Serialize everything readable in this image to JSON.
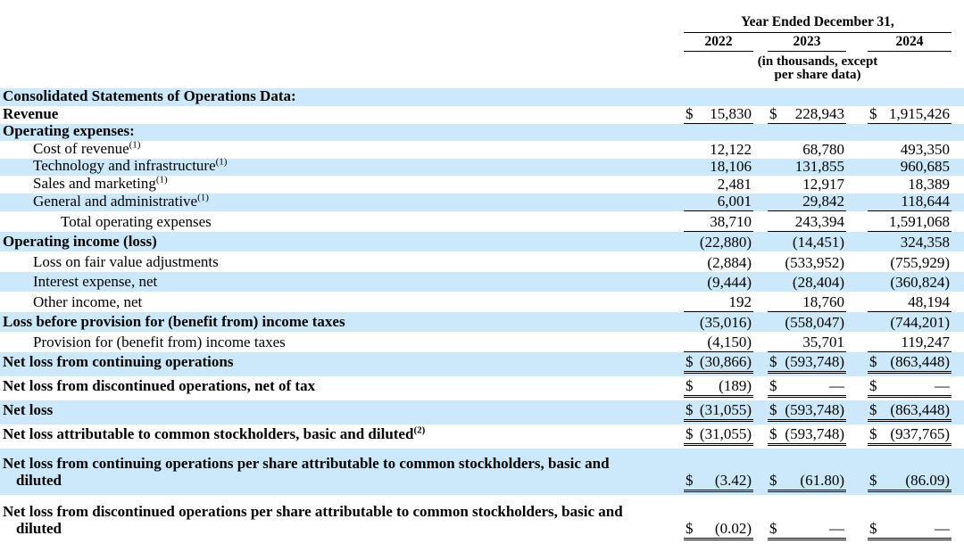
{
  "colors": {
    "row_shade": "#cbe9fb",
    "rule": "#000000",
    "text": "#000000"
  },
  "table": {
    "header": {
      "period_title": "Year Ended December 31,",
      "columns": [
        "2022",
        "2023",
        "2024"
      ],
      "units_note_line1": "(in thousands, except",
      "units_note_line2": "per share data)"
    },
    "rows": [
      {
        "label": "Consolidated Statements of Operations Data:",
        "sup": "",
        "bold": true,
        "shaded": true,
        "indent": 0,
        "twoline": false,
        "label2": "",
        "rule": "none",
        "cells": [
          {
            "d": "",
            "v": ""
          },
          {
            "d": "",
            "v": ""
          },
          {
            "d": "",
            "v": ""
          }
        ]
      },
      {
        "label": "Revenue",
        "sup": "",
        "bold": true,
        "shaded": false,
        "indent": 0,
        "twoline": false,
        "label2": "",
        "rule": "single",
        "cells": [
          {
            "d": "$",
            "v": "15,830"
          },
          {
            "d": "$",
            "v": "228,943"
          },
          {
            "d": "$",
            "v": "1,915,426"
          }
        ]
      },
      {
        "label": "Operating expenses:",
        "sup": "",
        "bold": true,
        "shaded": true,
        "indent": 0,
        "twoline": false,
        "label2": "",
        "rule": "none",
        "cells": [
          {
            "d": "",
            "v": ""
          },
          {
            "d": "",
            "v": ""
          },
          {
            "d": "",
            "v": ""
          }
        ]
      },
      {
        "label": "Cost of revenue",
        "sup": "(1)",
        "bold": false,
        "shaded": false,
        "indent": 1,
        "twoline": false,
        "label2": "",
        "rule": "none",
        "cells": [
          {
            "d": "",
            "v": "12,122"
          },
          {
            "d": "",
            "v": "68,780"
          },
          {
            "d": "",
            "v": "493,350"
          }
        ]
      },
      {
        "label": "Technology and infrastructure",
        "sup": "(1)",
        "bold": false,
        "shaded": true,
        "indent": 1,
        "twoline": false,
        "label2": "",
        "rule": "none",
        "cells": [
          {
            "d": "",
            "v": "18,106"
          },
          {
            "d": "",
            "v": "131,855"
          },
          {
            "d": "",
            "v": "960,685"
          }
        ]
      },
      {
        "label": "Sales and marketing",
        "sup": "(1)",
        "bold": false,
        "shaded": false,
        "indent": 1,
        "twoline": false,
        "label2": "",
        "rule": "none",
        "cells": [
          {
            "d": "",
            "v": "2,481"
          },
          {
            "d": "",
            "v": "12,917"
          },
          {
            "d": "",
            "v": "18,389"
          }
        ]
      },
      {
        "label": "General and administrative",
        "sup": "(1)",
        "bold": false,
        "shaded": true,
        "indent": 1,
        "twoline": false,
        "label2": "",
        "rule": "single",
        "cells": [
          {
            "d": "",
            "v": "6,001"
          },
          {
            "d": "",
            "v": "29,842"
          },
          {
            "d": "",
            "v": "118,644"
          }
        ]
      },
      {
        "label": "Total operating expenses",
        "sup": "",
        "bold": false,
        "shaded": false,
        "indent": 2,
        "twoline": false,
        "label2": "",
        "rule": "single",
        "cells": [
          {
            "d": "",
            "v": "38,710"
          },
          {
            "d": "",
            "v": "243,394"
          },
          {
            "d": "",
            "v": "1,591,068"
          }
        ]
      },
      {
        "label": "Operating income (loss)",
        "sup": "",
        "bold": true,
        "shaded": true,
        "indent": 0,
        "twoline": false,
        "label2": "",
        "rule": "none",
        "cells": [
          {
            "d": "",
            "v": "(22,880)"
          },
          {
            "d": "",
            "v": "(14,451)"
          },
          {
            "d": "",
            "v": "324,358"
          }
        ]
      },
      {
        "label": "Loss on fair value adjustments",
        "sup": "",
        "bold": false,
        "shaded": false,
        "indent": 1,
        "twoline": false,
        "label2": "",
        "rule": "none",
        "cells": [
          {
            "d": "",
            "v": "(2,884)"
          },
          {
            "d": "",
            "v": "(533,952)"
          },
          {
            "d": "",
            "v": "(755,929)"
          }
        ]
      },
      {
        "label": "Interest expense, net",
        "sup": "",
        "bold": false,
        "shaded": true,
        "indent": 1,
        "twoline": false,
        "label2": "",
        "rule": "none",
        "cells": [
          {
            "d": "",
            "v": "(9,444)"
          },
          {
            "d": "",
            "v": "(28,404)"
          },
          {
            "d": "",
            "v": "(360,824)"
          }
        ]
      },
      {
        "label": "Other income, net",
        "sup": "",
        "bold": false,
        "shaded": false,
        "indent": 1,
        "twoline": false,
        "label2": "",
        "rule": "single",
        "cells": [
          {
            "d": "",
            "v": "192"
          },
          {
            "d": "",
            "v": "18,760"
          },
          {
            "d": "",
            "v": "48,194"
          }
        ]
      },
      {
        "label": "Loss before provision for (benefit from) income taxes",
        "sup": "",
        "bold": true,
        "shaded": true,
        "indent": 0,
        "twoline": false,
        "label2": "",
        "rule": "none",
        "cells": [
          {
            "d": "",
            "v": "(35,016)"
          },
          {
            "d": "",
            "v": "(558,047)"
          },
          {
            "d": "",
            "v": "(744,201)"
          }
        ]
      },
      {
        "label": "Provision for (benefit from) income taxes",
        "sup": "",
        "bold": false,
        "shaded": false,
        "indent": 1,
        "twoline": false,
        "label2": "",
        "rule": "single",
        "cells": [
          {
            "d": "",
            "v": "(4,150)"
          },
          {
            "d": "",
            "v": "35,701"
          },
          {
            "d": "",
            "v": "119,247"
          }
        ]
      },
      {
        "label": "Net loss from continuing operations",
        "sup": "",
        "bold": true,
        "shaded": true,
        "indent": 0,
        "twoline": false,
        "label2": "",
        "rule": "double",
        "cells": [
          {
            "d": "$",
            "v": "(30,866)"
          },
          {
            "d": "$",
            "v": "(593,748)"
          },
          {
            "d": "$",
            "v": "(863,448)"
          }
        ]
      },
      {
        "label": "Net loss from discontinued operations, net of tax",
        "sup": "",
        "bold": true,
        "shaded": false,
        "indent": 0,
        "twoline": false,
        "label2": "",
        "rule": "double",
        "cells": [
          {
            "d": "$",
            "v": "(189)"
          },
          {
            "d": "$",
            "v": "—"
          },
          {
            "d": "$",
            "v": "—"
          }
        ]
      },
      {
        "label": "Net loss",
        "sup": "",
        "bold": true,
        "shaded": true,
        "indent": 0,
        "twoline": false,
        "label2": "",
        "rule": "double",
        "cells": [
          {
            "d": "$",
            "v": "(31,055)"
          },
          {
            "d": "$",
            "v": "(593,748)"
          },
          {
            "d": "$",
            "v": "(863,448)"
          }
        ]
      },
      {
        "label": "Net loss attributable to common stockholders, basic and diluted",
        "sup": "(2)",
        "bold": true,
        "shaded": false,
        "indent": 0,
        "twoline": false,
        "label2": "",
        "rule": "double",
        "cells": [
          {
            "d": "$",
            "v": "(31,055)"
          },
          {
            "d": "$",
            "v": "(593,748)"
          },
          {
            "d": "$",
            "v": "(937,765)"
          }
        ]
      },
      {
        "label": "Net loss from continuing operations per share attributable to common stockholders, basic and",
        "sup": "",
        "bold": true,
        "shaded": true,
        "indent": 0,
        "twoline": true,
        "label2": "diluted",
        "rule": "double",
        "cells": [
          {
            "d": "$",
            "v": "(3.42)"
          },
          {
            "d": "$",
            "v": "(61.80)"
          },
          {
            "d": "$",
            "v": "(86.09)"
          }
        ]
      },
      {
        "label": "Net loss from discontinued operations per share attributable to common stockholders, basic and",
        "sup": "",
        "bold": true,
        "shaded": false,
        "indent": 0,
        "twoline": true,
        "label2": "diluted",
        "rule": "double",
        "cells": [
          {
            "d": "$",
            "v": "(0.02)"
          },
          {
            "d": "$",
            "v": "—"
          },
          {
            "d": "$",
            "v": "—"
          }
        ]
      }
    ]
  }
}
